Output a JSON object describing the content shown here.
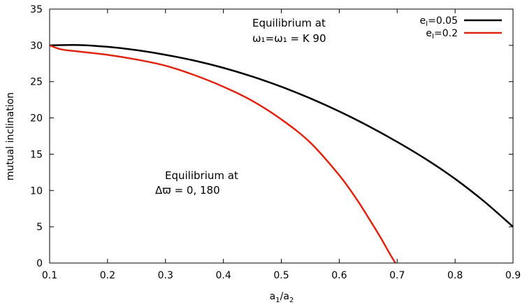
{
  "chart_data": {
    "type": "line",
    "xlabel": {
      "base": "a",
      "sub1": "1",
      "mid": "/a",
      "sub2": "2"
    },
    "ylabel": "mutual inclination",
    "xlim": [
      0.1,
      0.9
    ],
    "ylim": [
      0,
      35
    ],
    "x_ticks": [
      "0.1",
      "0.2",
      "0.3",
      "0.4",
      "0.5",
      "0.6",
      "0.7",
      "0.8",
      "0.9"
    ],
    "y_ticks": [
      "0",
      "5",
      "10",
      "15",
      "20",
      "25",
      "30",
      "35"
    ],
    "grid": false,
    "legend_position": "top-right",
    "series": [
      {
        "name": "e_I=0.05",
        "label_base": "e",
        "label_sub": "I",
        "label_rest": "=0.05",
        "color": "#000000",
        "x": [
          0.1,
          0.15,
          0.2,
          0.25,
          0.3,
          0.35,
          0.4,
          0.45,
          0.5,
          0.55,
          0.6,
          0.65,
          0.7,
          0.75,
          0.8,
          0.85,
          0.9
        ],
        "y": [
          30,
          30.05,
          29.8,
          29.35,
          28.7,
          27.9,
          26.9,
          25.7,
          24.3,
          22.7,
          20.9,
          18.9,
          16.7,
          14.3,
          11.6,
          8.5,
          5
        ]
      },
      {
        "name": "e_I=0.2",
        "label_base": "e",
        "label_sub": "I",
        "label_rest": "=0.2",
        "color": "#e02410",
        "x": [
          0.1,
          0.12,
          0.15,
          0.2,
          0.25,
          0.3,
          0.35,
          0.4,
          0.45,
          0.5,
          0.55,
          0.6,
          0.63,
          0.65,
          0.67,
          0.68,
          0.69,
          0.697
        ],
        "y": [
          30,
          29.45,
          29.15,
          28.7,
          28.05,
          27.2,
          25.9,
          24.3,
          22.35,
          19.8,
          16.6,
          12.1,
          8.8,
          6.3,
          3.7,
          2.3,
          0.9,
          0
        ]
      }
    ],
    "annotations": [
      {
        "line1": "Equilibrium at",
        "line2": "ω₁=ω₁ = K 90"
      },
      {
        "line1": "Equilibrium at",
        "line2": "Δϖ = 0, 180"
      }
    ]
  }
}
